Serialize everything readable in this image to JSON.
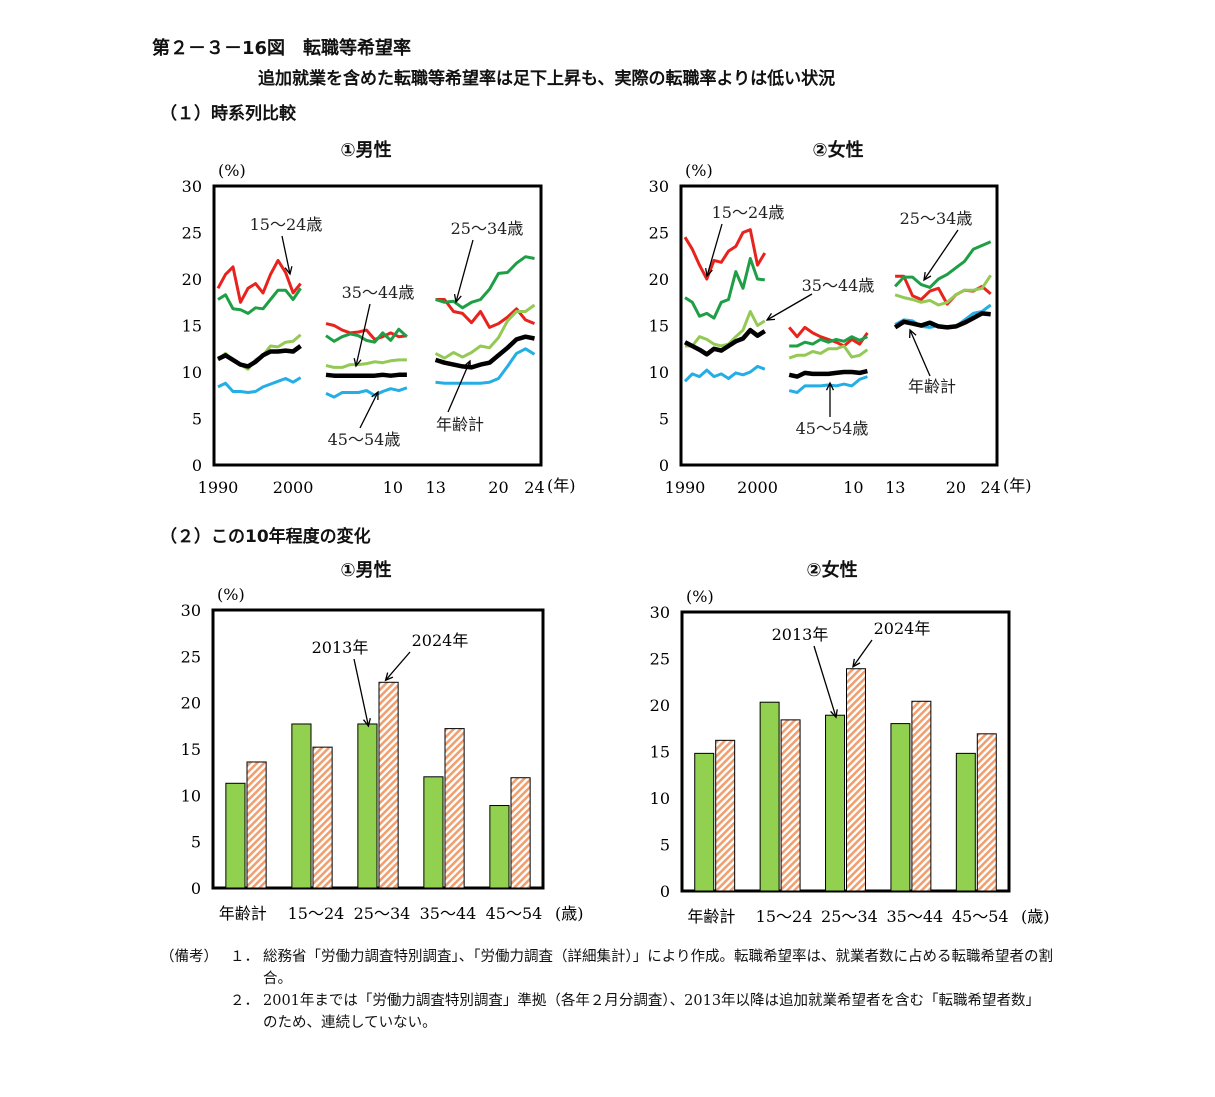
{
  "figure": {
    "title": "第２－３－16図　転職等希望率",
    "subtitle": "追加就業を含めた転職等希望率は足下上昇も、実際の転職率よりは低い状況"
  },
  "section1": {
    "title": "（１）時系列比較"
  },
  "section2": {
    "title": "（２）この10年程度の変化"
  },
  "chart_data": [
    {
      "id": "ts-male",
      "type": "line",
      "title": "①男性",
      "ylabel": "(%)",
      "xlabel": "(年)",
      "ylim": [
        0,
        30
      ],
      "yticks": [
        0,
        5,
        10,
        15,
        20,
        25,
        30
      ],
      "xticks": [
        "1990",
        "2000",
        "10",
        "13",
        "20",
        "24"
      ],
      "series_colors": {
        "15〜24歳": "#e8231e",
        "25〜34歳": "#1e9e45",
        "35〜44歳": "#94c955",
        "45〜54歳": "#24aee6",
        "年齢計": "#000000"
      },
      "segments": [
        {
          "x": [
            1990,
            1991,
            1992,
            1993,
            1994,
            1995,
            1996,
            1997,
            1998,
            1999,
            2000,
            2001
          ],
          "series": [
            {
              "name": "15〜24歳",
              "values": [
                19.0,
                20.5,
                21.3,
                17.5,
                19.0,
                19.5,
                18.5,
                20.5,
                22.0,
                20.7,
                18.5,
                19.5
              ]
            },
            {
              "name": "25〜34歳",
              "values": [
                17.8,
                18.3,
                16.8,
                16.7,
                16.3,
                16.9,
                16.8,
                17.8,
                18.8,
                18.8,
                17.8,
                19.0
              ]
            },
            {
              "name": "35〜44歳",
              "values": [
                11.3,
                12.0,
                11.2,
                10.8,
                10.3,
                11.3,
                11.8,
                12.8,
                12.7,
                13.2,
                13.3,
                14.0
              ]
            },
            {
              "name": "45〜54歳",
              "values": [
                8.4,
                8.8,
                7.9,
                7.9,
                7.8,
                7.9,
                8.4,
                8.7,
                9.0,
                9.3,
                8.9,
                9.4
              ]
            },
            {
              "name": "年齢計",
              "values": [
                11.4,
                11.8,
                11.3,
                10.8,
                10.6,
                11.1,
                11.8,
                12.2,
                12.2,
                12.3,
                12.2,
                12.8
              ]
            }
          ]
        },
        {
          "x": [
            2002,
            2003,
            2004,
            2005,
            2006,
            2007,
            2008,
            2009,
            2010,
            2011,
            2012
          ],
          "series": [
            {
              "name": "15〜24歳",
              "values": [
                15.2,
                15.0,
                14.5,
                14.2,
                14.3,
                14.5,
                13.5,
                13.8,
                14.2,
                13.8,
                13.9
              ]
            },
            {
              "name": "25〜34歳",
              "values": [
                13.9,
                13.3,
                13.8,
                14.1,
                13.9,
                13.4,
                13.2,
                14.2,
                13.4,
                14.6,
                13.8
              ]
            },
            {
              "name": "35〜44歳",
              "values": [
                10.7,
                10.5,
                10.5,
                10.8,
                10.8,
                10.9,
                11.1,
                11.0,
                11.2,
                11.3,
                11.3
              ]
            },
            {
              "name": "45〜54歳",
              "values": [
                7.7,
                7.3,
                7.8,
                7.8,
                7.8,
                8.0,
                7.5,
                7.9,
                8.2,
                8.0,
                8.3
              ]
            },
            {
              "name": "年齢計",
              "values": [
                9.7,
                9.6,
                9.6,
                9.6,
                9.6,
                9.6,
                9.6,
                9.7,
                9.6,
                9.7,
                9.7
              ]
            }
          ]
        },
        {
          "x": [
            2013,
            2014,
            2015,
            2016,
            2017,
            2018,
            2019,
            2020,
            2021,
            2022,
            2023,
            2024
          ],
          "series": [
            {
              "name": "15〜24歳",
              "values": [
                17.8,
                17.8,
                16.5,
                16.3,
                15.3,
                16.5,
                14.8,
                15.2,
                15.9,
                16.8,
                15.6,
                15.2
              ]
            },
            {
              "name": "25〜34歳",
              "values": [
                17.8,
                17.5,
                17.6,
                16.9,
                17.5,
                17.8,
                18.9,
                20.6,
                20.7,
                21.7,
                22.4,
                22.2
              ]
            },
            {
              "name": "35〜44歳",
              "values": [
                12.0,
                11.5,
                12.1,
                11.6,
                12.1,
                12.8,
                12.6,
                13.7,
                15.5,
                16.5,
                16.5,
                17.2
              ]
            },
            {
              "name": "45〜54歳",
              "values": [
                8.9,
                8.8,
                8.8,
                8.8,
                8.8,
                8.8,
                8.9,
                9.3,
                10.6,
                12.0,
                12.5,
                11.9
              ]
            },
            {
              "name": "年齢計",
              "values": [
                11.3,
                11.0,
                10.8,
                10.6,
                10.5,
                10.8,
                11.0,
                11.8,
                12.6,
                13.5,
                13.8,
                13.6
              ]
            }
          ]
        }
      ],
      "annotations": [
        "15〜24歳",
        "25〜34歳",
        "35〜44歳",
        "45〜54歳",
        "年齢計"
      ]
    },
    {
      "id": "ts-female",
      "type": "line",
      "title": "②女性",
      "ylabel": "(%)",
      "xlabel": "(年)",
      "ylim": [
        0,
        30
      ],
      "yticks": [
        0,
        5,
        10,
        15,
        20,
        25,
        30
      ],
      "xticks": [
        "1990",
        "2000",
        "10",
        "13",
        "20",
        "24"
      ],
      "series_colors": {
        "15〜24歳": "#e8231e",
        "25〜34歳": "#1e9e45",
        "35〜44歳": "#94c955",
        "45〜54歳": "#24aee6",
        "年齢計": "#000000"
      },
      "segments": [
        {
          "x": [
            1990,
            1991,
            1992,
            1993,
            1994,
            1995,
            1996,
            1997,
            1998,
            1999,
            2000,
            2001
          ],
          "series": [
            {
              "name": "15〜24歳",
              "values": [
                24.5,
                23.2,
                21.5,
                20.0,
                22.0,
                21.8,
                23.0,
                23.5,
                25.0,
                25.3,
                21.5,
                22.8
              ]
            },
            {
              "name": "25〜34歳",
              "values": [
                18.0,
                17.5,
                16.0,
                16.3,
                15.8,
                17.5,
                17.8,
                20.8,
                19.0,
                22.2,
                20.0,
                19.9
              ]
            },
            {
              "name": "35〜44歳",
              "values": [
                12.8,
                12.8,
                13.8,
                13.5,
                13.0,
                12.8,
                13.0,
                13.8,
                14.5,
                16.5,
                15.0,
                15.5
              ]
            },
            {
              "name": "45〜54歳",
              "values": [
                9.0,
                9.8,
                9.5,
                10.2,
                9.5,
                9.8,
                9.3,
                9.9,
                9.7,
                10.0,
                10.6,
                10.3
              ]
            },
            {
              "name": "年齢計",
              "values": [
                13.2,
                12.8,
                12.4,
                11.9,
                12.5,
                12.3,
                12.8,
                13.3,
                13.6,
                14.5,
                13.9,
                14.4
              ]
            }
          ]
        },
        {
          "x": [
            2002,
            2003,
            2004,
            2005,
            2006,
            2007,
            2008,
            2009,
            2010,
            2011,
            2012
          ],
          "series": [
            {
              "name": "15〜24歳",
              "values": [
                14.8,
                13.8,
                14.8,
                14.2,
                13.8,
                13.5,
                13.2,
                12.8,
                13.5,
                13.0,
                14.2
              ]
            },
            {
              "name": "25〜34歳",
              "values": [
                12.8,
                12.8,
                13.2,
                13.0,
                13.5,
                13.2,
                13.5,
                13.3,
                13.8,
                13.4,
                13.8
              ]
            },
            {
              "name": "35〜44歳",
              "values": [
                11.5,
                11.8,
                11.8,
                12.2,
                12.0,
                12.5,
                12.5,
                12.8,
                11.6,
                11.8,
                12.4
              ]
            },
            {
              "name": "45〜54歳",
              "values": [
                8.0,
                7.8,
                8.5,
                8.5,
                8.5,
                8.6,
                8.5,
                8.7,
                8.5,
                9.2,
                9.5
              ]
            },
            {
              "name": "年齢計",
              "values": [
                9.7,
                9.5,
                9.9,
                9.8,
                9.8,
                9.8,
                9.9,
                10.0,
                10.0,
                9.9,
                10.1
              ]
            }
          ]
        },
        {
          "x": [
            2013,
            2014,
            2015,
            2016,
            2017,
            2018,
            2019,
            2020,
            2021,
            2022,
            2023,
            2024
          ],
          "series": [
            {
              "name": "15〜24歳",
              "values": [
                20.3,
                20.3,
                18.2,
                17.8,
                18.7,
                19.0,
                17.3,
                18.3,
                18.8,
                18.7,
                19.2,
                18.4
              ]
            },
            {
              "name": "25〜34歳",
              "values": [
                19.2,
                20.2,
                20.2,
                19.4,
                19.1,
                20.0,
                20.5,
                21.2,
                21.9,
                23.2,
                23.6,
                24.0
              ]
            },
            {
              "name": "35〜44歳",
              "values": [
                18.3,
                18.0,
                17.8,
                17.5,
                17.7,
                17.2,
                17.5,
                18.3,
                18.8,
                18.8,
                19.0,
                20.4
              ]
            },
            {
              "name": "45〜54歳",
              "values": [
                15.1,
                15.6,
                15.5,
                14.9,
                14.8,
                15.0,
                14.8,
                14.9,
                15.6,
                16.3,
                16.5,
                17.2
              ]
            },
            {
              "name": "年齢計",
              "values": [
                14.8,
                15.4,
                15.2,
                15.0,
                15.3,
                14.9,
                14.8,
                14.9,
                15.3,
                15.8,
                16.3,
                16.2
              ]
            }
          ]
        }
      ],
      "annotations": [
        "15〜24歳",
        "25〜34歳",
        "35〜44歳",
        "45〜54歳",
        "年齢計"
      ]
    },
    {
      "id": "bar-male",
      "type": "bar",
      "title": "①男性",
      "ylabel": "(%)",
      "xlabel": "(歳)",
      "ylim": [
        0,
        30
      ],
      "yticks": [
        0,
        5,
        10,
        15,
        20,
        25,
        30
      ],
      "categories": [
        "年齢計",
        "15〜24",
        "25〜34",
        "35〜44",
        "45〜54"
      ],
      "series": [
        {
          "name": "2013年",
          "values": [
            11.3,
            17.7,
            17.7,
            12.0,
            8.9
          ],
          "color": "#92d050"
        },
        {
          "name": "2024年",
          "values": [
            13.6,
            15.2,
            22.2,
            17.2,
            11.9
          ],
          "color": "#f0a070"
        }
      ]
    },
    {
      "id": "bar-female",
      "type": "bar",
      "title": "②女性",
      "ylabel": "(%)",
      "xlabel": "(歳)",
      "ylim": [
        0,
        30
      ],
      "yticks": [
        0,
        5,
        10,
        15,
        20,
        25,
        30
      ],
      "categories": [
        "年齢計",
        "15〜24",
        "25〜34",
        "35〜44",
        "45〜54"
      ],
      "series": [
        {
          "name": "2013年",
          "values": [
            14.8,
            20.3,
            18.9,
            18.0,
            14.8
          ],
          "color": "#92d050"
        },
        {
          "name": "2024年",
          "values": [
            16.2,
            18.4,
            23.9,
            20.4,
            16.9
          ],
          "color": "#f0a070"
        }
      ]
    }
  ],
  "notes": {
    "label": "（備考）",
    "items": [
      {
        "num": "１．",
        "text": "総務省「労働力調査特別調査」、「労働力調査（詳細集計）」により作成。転職希望率は、就業者数に占める転職希望者の割合。"
      },
      {
        "num": "２．",
        "text": "2001年までは「労働力調査特別調査」準拠（各年２月分調査）、2013年以降は追加就業希望者を含む「転職希望者数」のため、連続していない。"
      }
    ]
  }
}
